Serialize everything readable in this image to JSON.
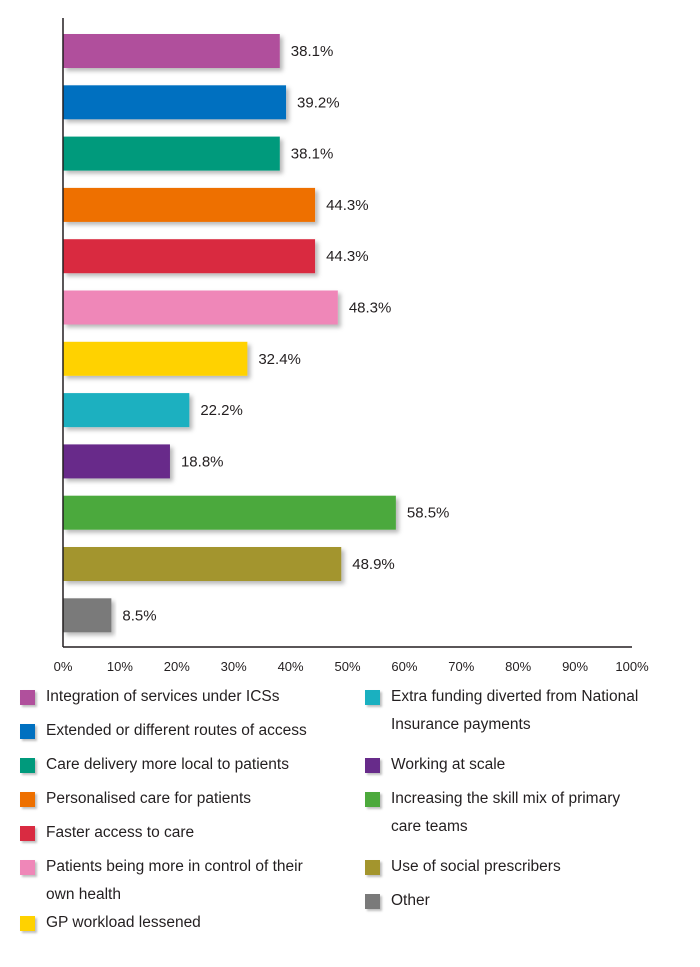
{
  "chart_data": {
    "type": "bar",
    "orientation": "horizontal",
    "xlim": [
      0,
      100
    ],
    "x_tick_labels": [
      "0%",
      "10%",
      "20%",
      "30%",
      "40%",
      "50%",
      "60%",
      "70%",
      "80%",
      "90%",
      "100%"
    ],
    "grid": false,
    "legend_position": "bottom",
    "series": [
      {
        "name": "Integration of services under ICSs",
        "value": 38.1,
        "label": "38.1%",
        "color": "#b0509c"
      },
      {
        "name": "Extended or different routes of access",
        "value": 39.2,
        "label": "39.2%",
        "color": "#0070c0"
      },
      {
        "name": "Care delivery more local to patients",
        "value": 38.1,
        "label": "38.1%",
        "color": "#009a7c"
      },
      {
        "name": "Personalised care for patients",
        "value": 44.3,
        "label": "44.3%",
        "color": "#ee7000"
      },
      {
        "name": "Faster access to care",
        "value": 44.3,
        "label": "44.3%",
        "color": "#d92b41"
      },
      {
        "name": "Patients being more in control of their own health",
        "value": 48.3,
        "label": "48.3%",
        "color": "#ef87b8"
      },
      {
        "name": "GP workload lessened",
        "value": 32.4,
        "label": "32.4%",
        "color": "#ffd200"
      },
      {
        "name": "Extra funding diverted from National Insurance payments",
        "value": 22.2,
        "label": "22.2%",
        "color": "#1ab0c0"
      },
      {
        "name": "Working at scale",
        "value": 18.8,
        "label": "18.8%",
        "color": "#672b8a"
      },
      {
        "name": "Increasing the skill mix of primary care teams",
        "value": 58.5,
        "label": "58.5%",
        "color": "#4ca93c"
      },
      {
        "name": "Use of social prescribers",
        "value": 48.9,
        "label": "48.9%",
        "color": "#a3952d"
      },
      {
        "name": "Other",
        "value": 8.5,
        "label": "8.5%",
        "color": "#7a7a7a"
      }
    ]
  },
  "legend": {
    "left": [
      {
        "lines": [
          "Integration of services under ICSs"
        ],
        "color": "#b0509c"
      },
      {
        "lines": [
          "Extended or different routes of access"
        ],
        "color": "#0070c0"
      },
      {
        "lines": [
          "Care delivery more local to patients"
        ],
        "color": "#009a7c"
      },
      {
        "lines": [
          "Personalised care for patients"
        ],
        "color": "#ee7000"
      },
      {
        "lines": [
          "Faster access to care"
        ],
        "color": "#d92b41"
      },
      {
        "lines": [
          "Patients being more in control of their",
          "own health"
        ],
        "color": "#ef87b8"
      },
      {
        "lines": [
          "GP workload lessened"
        ],
        "color": "#ffd200"
      }
    ],
    "right": [
      {
        "lines": [
          "Extra funding diverted from National",
          "Insurance payments"
        ],
        "color": "#1ab0c0"
      },
      {
        "lines": [
          "Working at scale"
        ],
        "color": "#672b8a"
      },
      {
        "lines": [
          "Increasing the skill mix of primary",
          "care teams"
        ],
        "color": "#4ca93c"
      },
      {
        "lines": [
          "Use of social prescribers"
        ],
        "color": "#a3952d"
      },
      {
        "lines": [
          "Other"
        ],
        "color": "#7a7a7a"
      }
    ]
  }
}
